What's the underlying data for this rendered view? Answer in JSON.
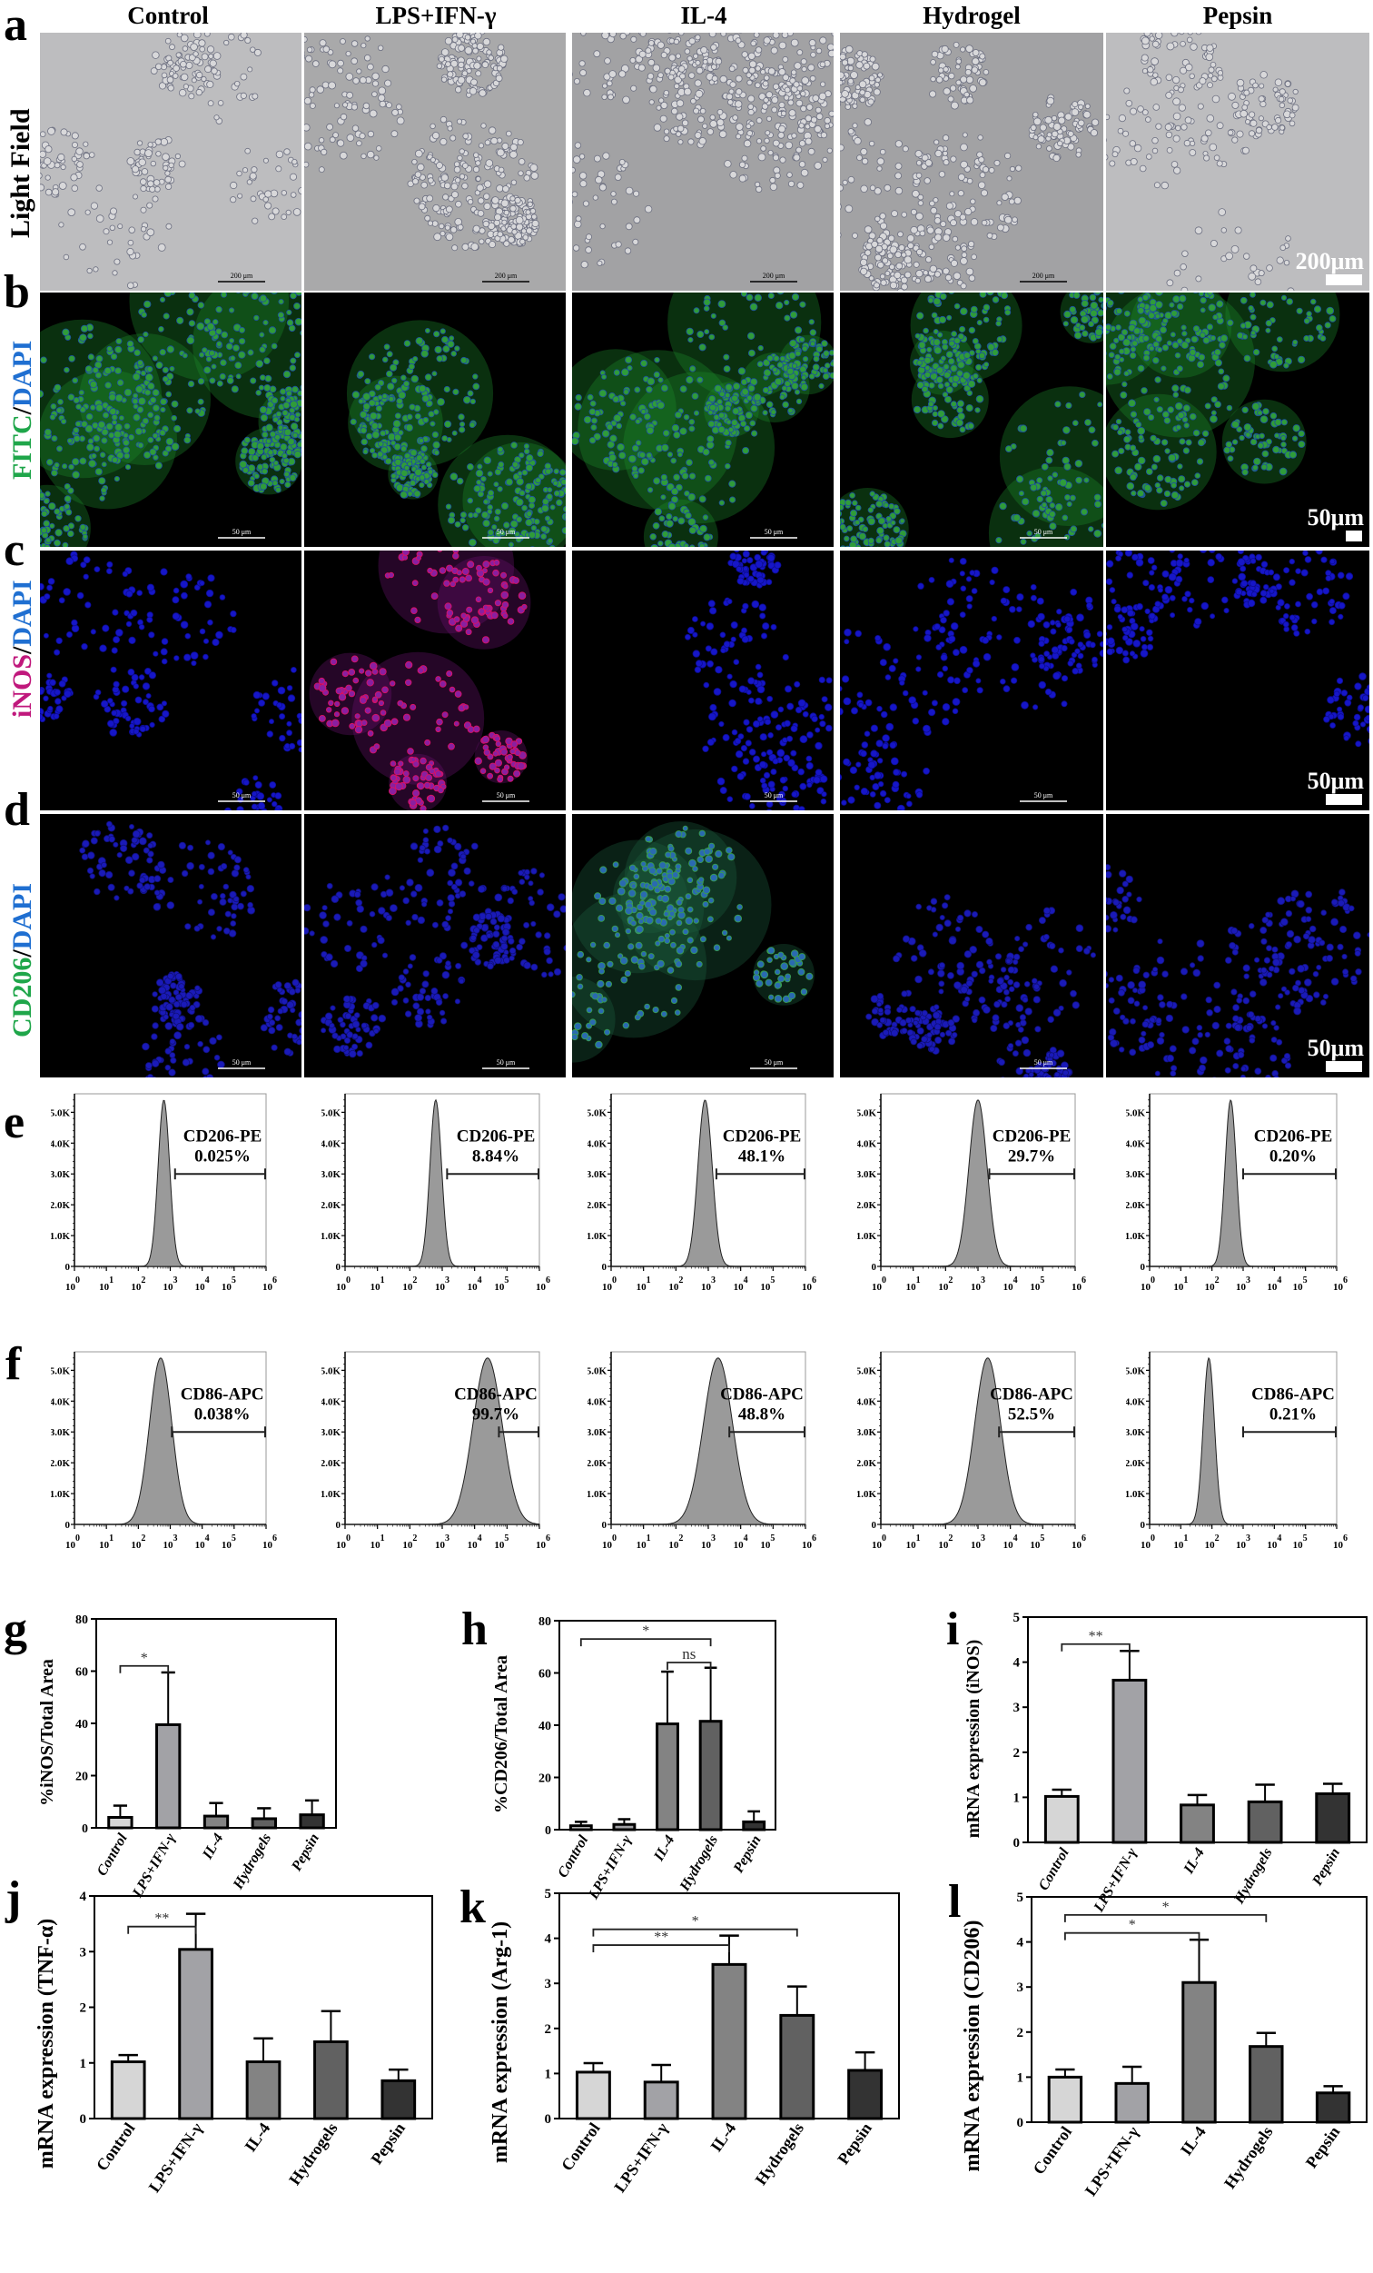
{
  "figure": {
    "columns": [
      "Control",
      "LPS+IFN-γ",
      "IL-4",
      "Hydrogel",
      "Pepsin"
    ],
    "panels": {
      "a": {
        "letter": "a",
        "row_label": "Light Field",
        "scale_small": "200 μm",
        "scale_big": "200μm"
      },
      "b": {
        "letter": "b",
        "row_label_parts": [
          {
            "text": "FITC",
            "color": "#1fa64a"
          },
          {
            "text": "/",
            "color": "#000000"
          },
          {
            "text": "DAPI",
            "color": "#1f6fd1"
          }
        ],
        "scale_small": "50 μm",
        "scale_big": "50μm"
      },
      "c": {
        "letter": "c",
        "row_label_parts": [
          {
            "text": "iNOS",
            "color": "#c0187c"
          },
          {
            "text": "/",
            "color": "#000000"
          },
          {
            "text": "DAPI",
            "color": "#1f6fd1"
          }
        ],
        "scale_small": "50 μm",
        "scale_big": "50μm"
      },
      "d": {
        "letter": "d",
        "row_label_parts": [
          {
            "text": "CD206",
            "color": "#1fa64a"
          },
          {
            "text": "/",
            "color": "#000000"
          },
          {
            "text": "DAPI",
            "color": "#1f6fd1"
          }
        ],
        "scale_small": "50 μm",
        "scale_big": "50μm"
      },
      "e": {
        "letter": "e"
      },
      "f": {
        "letter": "f"
      },
      "g": {
        "letter": "g"
      },
      "h": {
        "letter": "h"
      },
      "i": {
        "letter": "i"
      },
      "j": {
        "letter": "j"
      },
      "k": {
        "letter": "k"
      },
      "l": {
        "letter": "l"
      }
    }
  },
  "chart_data": [
    {
      "panel": "e",
      "type": "histogram",
      "marker": "CD206-PE",
      "y_ticks": [
        "0",
        "1.0K",
        "2.0K",
        "3.0K",
        "4.0K",
        "5.0K"
      ],
      "x_ticks": [
        "10^0",
        "10^1",
        "10^2",
        "10^3",
        "10^4",
        "10^5",
        "10^6"
      ],
      "series": [
        {
          "name": "Control",
          "label": "CD206-PE",
          "percent": "0.025%",
          "peak_log": 2.8,
          "width": 0.18
        },
        {
          "name": "LPS+IFN-γ",
          "label": "CD206-PE",
          "percent": "8.84%",
          "peak_log": 2.8,
          "width": 0.18
        },
        {
          "name": "IL-4",
          "label": "CD206-PE",
          "percent": "48.1%",
          "peak_log": 2.9,
          "width": 0.22
        },
        {
          "name": "Hydrogel",
          "label": "CD206-PE",
          "percent": "29.7%",
          "peak_log": 3.0,
          "width": 0.28
        },
        {
          "name": "Pepsin",
          "label": "CD206-PE",
          "percent": "0.20%",
          "peak_log": 2.6,
          "width": 0.18
        }
      ]
    },
    {
      "panel": "f",
      "type": "histogram",
      "marker": "CD86-APC",
      "y_ticks": [
        "0",
        "1.0K",
        "2.0K",
        "3.0K",
        "4.0K",
        "5.0K"
      ],
      "x_ticks": [
        "10^0",
        "10^1",
        "10^2",
        "10^3",
        "10^4",
        "10^5",
        "10^6"
      ],
      "series": [
        {
          "name": "Control",
          "label": "CD86-APC",
          "percent": "0.038%",
          "peak_log": 2.7,
          "width": 0.35
        },
        {
          "name": "LPS+IFN-γ",
          "label": "CD86-APC",
          "percent": "99.7%",
          "peak_log": 4.4,
          "width": 0.45
        },
        {
          "name": "IL-4",
          "label": "CD86-APC",
          "percent": "48.8%",
          "peak_log": 3.3,
          "width": 0.45
        },
        {
          "name": "Hydrogel",
          "label": "CD86-APC",
          "percent": "52.5%",
          "peak_log": 3.3,
          "width": 0.4
        },
        {
          "name": "Pepsin",
          "label": "CD86-APC",
          "percent": "0.21%",
          "peak_log": 1.9,
          "width": 0.18
        }
      ]
    },
    {
      "panel": "g",
      "type": "bar",
      "title": "",
      "xlabel": "",
      "ylabel": "%iNOS/Total Area",
      "ylim": [
        0,
        80
      ],
      "yticks": [
        0,
        20,
        40,
        60,
        80
      ],
      "categories": [
        "Control",
        "LPS+IFN-γ",
        "IL-4",
        "Hydrogels",
        "Pepsin"
      ],
      "values": [
        4,
        39.5,
        4.5,
        3.5,
        5
      ],
      "errors": [
        4.5,
        20,
        5,
        4,
        5.5
      ],
      "italic_labels": true,
      "significance": [
        {
          "from": 0,
          "to": 1,
          "label": "*",
          "y": 62
        }
      ]
    },
    {
      "panel": "h",
      "type": "bar",
      "title": "",
      "xlabel": "",
      "ylabel": "%CD206/Total Area",
      "ylim": [
        0,
        80
      ],
      "yticks": [
        0,
        20,
        40,
        60,
        80
      ],
      "categories": [
        "Control",
        "LPS+IFN-γ",
        "IL-4",
        "Hydrogels",
        "Pepsin"
      ],
      "values": [
        1.5,
        2,
        40.5,
        41.5,
        3
      ],
      "errors": [
        1.5,
        2,
        20,
        20.5,
        4
      ],
      "italic_labels": true,
      "significance": [
        {
          "from": 0,
          "to": 3,
          "label": "*",
          "y": 73
        },
        {
          "from": 2,
          "to": 3,
          "label": "ns",
          "y": 64
        }
      ]
    },
    {
      "panel": "i",
      "type": "bar",
      "title": "",
      "xlabel": "",
      "ylabel": "mRNA expression (iNOS)",
      "ylim": [
        0,
        5
      ],
      "yticks": [
        0,
        1,
        2,
        3,
        4,
        5
      ],
      "categories": [
        "Control",
        "LPS+IFN-γ",
        "IL-4",
        "Hydrogels",
        "Pepsin"
      ],
      "values": [
        1.02,
        3.6,
        0.83,
        0.9,
        1.08
      ],
      "errors": [
        0.15,
        0.65,
        0.22,
        0.38,
        0.22
      ],
      "italic_labels": true,
      "significance": [
        {
          "from": 0,
          "to": 1,
          "label": "**",
          "y": 4.4
        }
      ]
    },
    {
      "panel": "j",
      "type": "bar",
      "title": "",
      "xlabel": "",
      "ylabel": "mRNA expression (TNF-α)",
      "ylim": [
        0,
        4
      ],
      "yticks": [
        0,
        1,
        2,
        3,
        4
      ],
      "categories": [
        "Control",
        "LPS+IFN-γ",
        "IL-4",
        "Hydrogels",
        "Pepsin"
      ],
      "values": [
        1.02,
        3.04,
        1.02,
        1.38,
        0.68
      ],
      "errors": [
        0.12,
        0.64,
        0.42,
        0.55,
        0.2
      ],
      "italic_labels": false,
      "significance": [
        {
          "from": 0,
          "to": 1,
          "label": "**",
          "y": 3.45
        }
      ]
    },
    {
      "panel": "k",
      "type": "bar",
      "title": "",
      "xlabel": "",
      "ylabel": "mRNA expression (Arg-1)",
      "ylim": [
        0,
        5
      ],
      "yticks": [
        0,
        1,
        2,
        3,
        4,
        5
      ],
      "categories": [
        "Control",
        "LPS+IFN-γ",
        "IL-4",
        "Hydrogels",
        "Pepsin"
      ],
      "values": [
        1.03,
        0.81,
        3.42,
        2.29,
        1.07
      ],
      "errors": [
        0.2,
        0.38,
        0.64,
        0.64,
        0.4
      ],
      "italic_labels": false,
      "significance": [
        {
          "from": 0,
          "to": 3,
          "label": "*",
          "y": 4.2
        },
        {
          "from": 0,
          "to": 2,
          "label": "**",
          "y": 3.85
        }
      ]
    },
    {
      "panel": "l",
      "type": "bar",
      "title": "",
      "xlabel": "",
      "ylabel": "mRNA expression (CD206)",
      "ylim": [
        0,
        5
      ],
      "yticks": [
        0,
        1,
        2,
        3,
        4,
        5
      ],
      "categories": [
        "Control",
        "LPS+IFN-γ",
        "IL-4",
        "Hydrogels",
        "Pepsin"
      ],
      "values": [
        1.0,
        0.86,
        3.1,
        1.68,
        0.65
      ],
      "errors": [
        0.17,
        0.37,
        0.95,
        0.3,
        0.15
      ],
      "italic_labels": false,
      "significance": [
        {
          "from": 0,
          "to": 3,
          "label": "*",
          "y": 4.6
        },
        {
          "from": 0,
          "to": 2,
          "label": "*",
          "y": 4.2
        }
      ]
    }
  ],
  "colors": {
    "bar_fills": [
      "#d6d6d6",
      "#a2a2a6",
      "#838383",
      "#616161",
      "#333333"
    ],
    "histogram_fill": "#9a9a9a"
  }
}
